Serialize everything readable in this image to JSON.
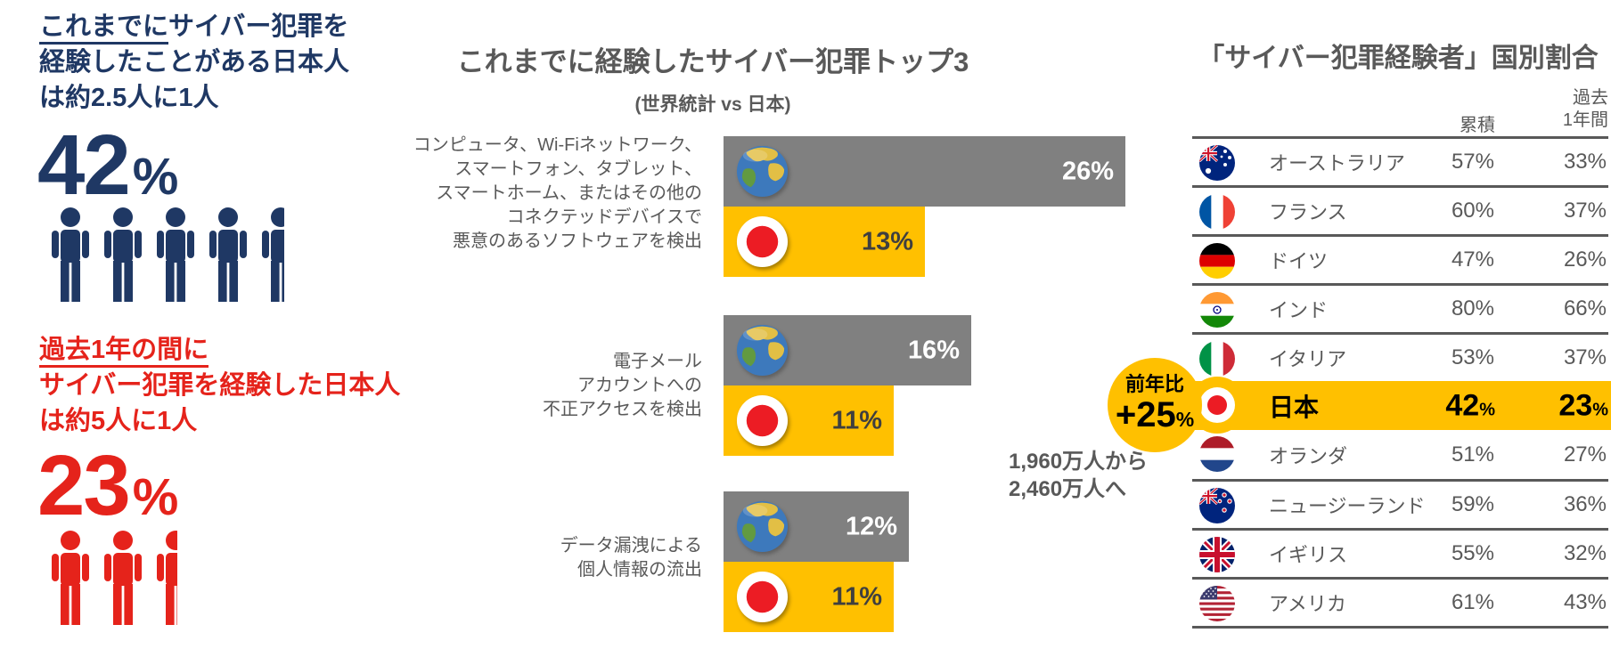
{
  "colors": {
    "navy": "#1F3864",
    "red": "#E5231B",
    "yellow": "#FFC000",
    "bar-gray": "#808080",
    "text-gray": "#595959",
    "value-dark": "#3F3F3F",
    "flag-red": "#EC1C24"
  },
  "left_stats": {
    "lifetime": {
      "heading_underline": "これまでに",
      "heading_rest": "サイバー犯罪を",
      "heading_line2": "経験したことがある日本人",
      "heading_line3": "は約2.5人に1人",
      "value": "42",
      "unit": "%",
      "people_icons": 5
    },
    "past_year": {
      "heading_underline": "過去1年の間に",
      "heading_line2": "サイバー犯罪を経験した日本人",
      "heading_line3": "は約5人に1人",
      "value": "23",
      "unit": "%",
      "people_icons": 3
    }
  },
  "chart_data": [
    {
      "type": "bar",
      "orientation": "horizontal",
      "title": "これまでに経験したサイバー犯罪トップ3",
      "subtitle": "(世界統計 vs 日本)",
      "categories": [
        "コンピュータ、Wi-Fiネットワーク、スマートフォン、タブレット、スマートホーム、またはその他のコネクテッドデバイスで悪意のあるソフトウェアを検出",
        "電子メールアカウントへの不正アクセスを検出",
        "データ漏洩による個人情報の流出"
      ],
      "series": [
        {
          "name": "世界統計",
          "icon": "globe-icon",
          "color": "#808080",
          "values": [
            26,
            16,
            12
          ]
        },
        {
          "name": "日本",
          "icon": "japan-flag-icon",
          "color": "#FFC000",
          "values": [
            13,
            11,
            11
          ]
        }
      ],
      "value_suffix": "%",
      "xlim": [
        0,
        28
      ],
      "value_labels": true,
      "legend_position": "icons-in-bars"
    },
    {
      "type": "table",
      "title": "「サイバー犯罪経験者」国別割合",
      "columns": [
        "累積",
        "過去1年間"
      ],
      "rows": [
        [
          "オーストラリア",
          "57%",
          "33%"
        ],
        [
          "フランス",
          "60%",
          "37%"
        ],
        [
          "ドイツ",
          "47%",
          "26%"
        ],
        [
          "インド",
          "80%",
          "66%"
        ],
        [
          "イタリア",
          "53%",
          "37%"
        ],
        [
          "日本",
          "42%",
          "23%"
        ],
        [
          "オランダ",
          "51%",
          "27%"
        ],
        [
          "ニュージーランド",
          "59%",
          "36%"
        ],
        [
          "イギリス",
          "55%",
          "32%"
        ],
        [
          "アメリカ",
          "61%",
          "43%"
        ]
      ],
      "highlight_row": 5
    }
  ],
  "center_layout": {
    "label_lines": [
      [
        "コンピュータ、Wi-Fiネットワーク、",
        "スマートフォン、タブレット、",
        "スマートホーム、またはその他の",
        "コネクテッドデバイスで",
        "悪意のあるソフトウェアを検出"
      ],
      [
        "電子メール",
        "アカウントへの",
        "不正アクセスを検出"
      ],
      [
        "データ漏洩による",
        "個人情報の流出"
      ]
    ]
  },
  "annotation": {
    "badge_line1": "前年比",
    "badge_value": "+25",
    "badge_unit": "%",
    "note_line1": "1,960万人から",
    "note_line2": "2,460万人へ"
  },
  "country_table": {
    "header_cumulative": "累積",
    "header_past_lines": [
      "過去",
      "1年間"
    ],
    "rows": [
      {
        "flag": "flag-australia",
        "country": "オーストラリア",
        "cum": "57%",
        "past": "33%"
      },
      {
        "flag": "flag-france",
        "country": "フランス",
        "cum": "60%",
        "past": "37%"
      },
      {
        "flag": "flag-germany",
        "country": "ドイツ",
        "cum": "47%",
        "past": "26%"
      },
      {
        "flag": "flag-india",
        "country": "インド",
        "cum": "80%",
        "past": "66%"
      },
      {
        "flag": "flag-italy",
        "country": "イタリア",
        "cum": "53%",
        "past": "37%"
      },
      {
        "flag": "flag-japan",
        "country": "日本",
        "cum_num": "42",
        "past_num": "23",
        "unit": "%",
        "highlight": true
      },
      {
        "flag": "flag-netherlands",
        "country": "オランダ",
        "cum": "51%",
        "past": "27%"
      },
      {
        "flag": "flag-new-zealand",
        "country": "ニュージーランド",
        "cum": "59%",
        "past": "36%"
      },
      {
        "flag": "flag-uk",
        "country": "イギリス",
        "cum": "55%",
        "past": "32%"
      },
      {
        "flag": "flag-usa",
        "country": "アメリカ",
        "cum": "61%",
        "past": "43%"
      }
    ]
  }
}
